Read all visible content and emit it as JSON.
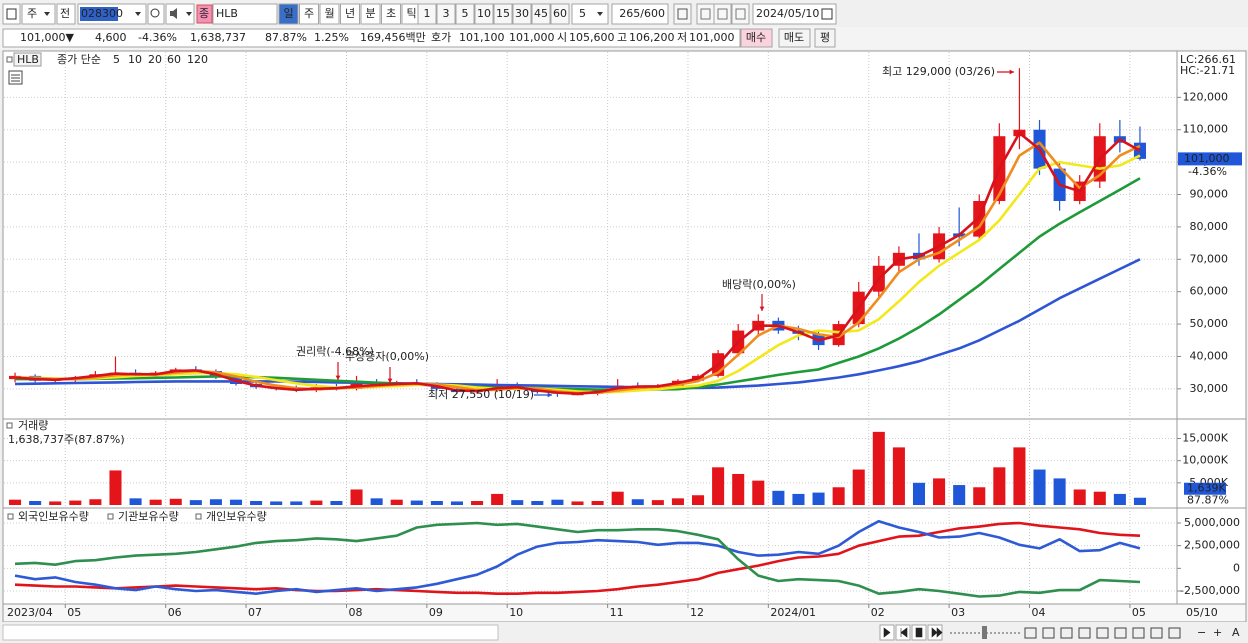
{
  "toolbar": {
    "market": "주",
    "prev": "전",
    "code": "028300",
    "tag": "종",
    "name": "HLB",
    "periods": [
      "일",
      "주",
      "월",
      "년",
      "분",
      "초",
      "틱"
    ],
    "intervals": [
      "1",
      "3",
      "5",
      "10",
      "15",
      "30",
      "45",
      "60"
    ],
    "interval_value": "5",
    "count": "265/600",
    "date": "2024/05/10"
  },
  "quote": {
    "price": "101,000▼",
    "change": "4,600",
    "change_pct": "-4.36%",
    "volume": "1,638,737",
    "volume_ratio": "87.87%",
    "turnover": "1.25%",
    "amount": "169,456백만",
    "ask_label": "호가",
    "ask": "101,100",
    "bid": "101,000",
    "open_label": "시",
    "open": "105,600",
    "high_label": "고",
    "high": "106,200",
    "low_label": "저",
    "low": "101,000",
    "buy": "매수",
    "sell": "매도",
    "avg": "평"
  },
  "bottom_toolbar": {
    "zoom_out": "−",
    "zoom_in": "+",
    "font": "A"
  },
  "chart_data": [
    {
      "type": "candlestick",
      "title": "HLB",
      "legend_label": "종가 단순",
      "categories": [
        "2023/04",
        null,
        null,
        "05",
        null,
        null,
        null,
        null,
        "06",
        null,
        null,
        null,
        "07",
        null,
        null,
        null,
        null,
        "08",
        null,
        null,
        null,
        "09",
        null,
        null,
        null,
        "10",
        null,
        null,
        null,
        null,
        "11",
        null,
        null,
        null,
        "12",
        null,
        null,
        null,
        "2024/01",
        null,
        null,
        null,
        null,
        "02",
        null,
        null,
        null,
        "03",
        null,
        null,
        null,
        "04",
        null,
        null,
        null,
        null,
        "05"
      ],
      "last_x_label": "05/10",
      "open": [
        33000,
        34000,
        32500,
        33000,
        33500,
        34500,
        35000,
        34000,
        35000,
        36000,
        35500,
        33500,
        31500,
        30500,
        30000,
        29500,
        30500,
        30000,
        31500,
        31000,
        32000,
        31500,
        30000,
        29000,
        29500,
        31000,
        30000,
        29000,
        28500,
        28500,
        29500,
        31000,
        30500,
        31000,
        32500,
        34000,
        41000,
        48000,
        51000,
        48000,
        47000,
        43500,
        50000,
        60000,
        68000,
        72000,
        70000,
        78000,
        77000,
        88000,
        108000,
        110000,
        98000,
        88000,
        94000,
        108000,
        106000
      ],
      "high": [
        35000,
        34500,
        33500,
        34000,
        35500,
        40000,
        36000,
        35500,
        36500,
        37000,
        36000,
        34000,
        32000,
        31000,
        31000,
        31500,
        31500,
        34000,
        33000,
        32500,
        33000,
        32000,
        30500,
        30500,
        33000,
        32000,
        30500,
        29500,
        29500,
        30000,
        33000,
        32000,
        31500,
        33000,
        34500,
        42000,
        50000,
        53000,
        52000,
        49500,
        48000,
        51000,
        63000,
        71000,
        74000,
        78000,
        80000,
        86000,
        90000,
        112000,
        129000,
        113000,
        100000,
        96000,
        112000,
        113000,
        111000
      ],
      "low": [
        32000,
        32000,
        31500,
        32000,
        33000,
        34000,
        33500,
        33500,
        34500,
        35000,
        33000,
        31000,
        30000,
        29500,
        29000,
        29000,
        29500,
        29500,
        30500,
        30500,
        31000,
        29500,
        28500,
        28500,
        29000,
        29500,
        28500,
        27550,
        28000,
        28000,
        29000,
        30000,
        30000,
        30500,
        32000,
        33500,
        40000,
        46000,
        47000,
        45000,
        42000,
        43000,
        49000,
        58000,
        66000,
        68000,
        69000,
        74000,
        76000,
        87000,
        104000,
        96000,
        85000,
        87000,
        92000,
        103000,
        100500
      ],
      "close": [
        34000,
        32500,
        33000,
        33500,
        34500,
        35000,
        34000,
        35000,
        36000,
        35500,
        33500,
        31500,
        30500,
        30000,
        29500,
        30500,
        30000,
        31500,
        31000,
        32000,
        31500,
        30000,
        29000,
        29500,
        31000,
        30000,
        29000,
        28500,
        28500,
        29500,
        31000,
        30500,
        31000,
        32500,
        34000,
        41000,
        48000,
        51000,
        48000,
        47000,
        43500,
        50000,
        60000,
        68000,
        72000,
        70000,
        78000,
        77000,
        88000,
        108000,
        110000,
        98000,
        88000,
        94000,
        108000,
        106000,
        101000
      ],
      "up_color": "#e3151a",
      "down_color": "#1f57d8",
      "series": [
        {
          "name": "5",
          "color": "#d8121b",
          "values": [
            33500,
            33000,
            32800,
            33300,
            34000,
            34700,
            34500,
            34500,
            35500,
            35700,
            34500,
            32500,
            31000,
            30200,
            29700,
            30000,
            30200,
            30800,
            31200,
            31500,
            31700,
            30800,
            29500,
            29300,
            30200,
            30500,
            29500,
            28800,
            28500,
            29000,
            30200,
            30700,
            30800,
            31800,
            33200,
            37500,
            44500,
            49500,
            49500,
            47500,
            45000,
            46500,
            55000,
            64000,
            70000,
            71000,
            74000,
            77500,
            83000,
            98000,
            109000,
            104000,
            93000,
            91000,
            101000,
            107000,
            103500
          ]
        },
        {
          "name": "10",
          "color": "#f08c1e",
          "values": [
            33500,
            33300,
            33000,
            33000,
            33500,
            34200,
            34600,
            34500,
            35000,
            35500,
            35100,
            33800,
            32200,
            31000,
            30200,
            29900,
            30100,
            30400,
            30900,
            31300,
            31600,
            31300,
            30500,
            29600,
            29700,
            30300,
            30000,
            29200,
            28700,
            28800,
            29500,
            30300,
            30700,
            31300,
            32400,
            35000,
            40500,
            46500,
            49500,
            48500,
            46800,
            46000,
            50500,
            58000,
            66000,
            70000,
            72000,
            76000,
            80000,
            90000,
            102000,
            106000,
            98500,
            92000,
            96000,
            102000,
            105000
          ]
        },
        {
          "name": "20",
          "color": "#f3e81c",
          "values": [
            33500,
            33400,
            33200,
            33100,
            33200,
            33600,
            34000,
            34200,
            34500,
            34800,
            34900,
            34500,
            33700,
            32700,
            31700,
            30900,
            30400,
            30400,
            30600,
            30900,
            31200,
            31300,
            31000,
            30400,
            30000,
            30000,
            30100,
            29700,
            29200,
            28900,
            29100,
            29500,
            29900,
            30500,
            31000,
            32500,
            35500,
            39500,
            43500,
            46500,
            48000,
            47500,
            48000,
            51500,
            57000,
            63000,
            68000,
            72000,
            76000,
            82000,
            90000,
            98000,
            100000,
            99000,
            98000,
            99000,
            102000
          ]
        },
        {
          "name": "60",
          "color": "#1f9a38",
          "values": [
            33000,
            33000,
            33000,
            33000,
            33100,
            33200,
            33300,
            33400,
            33500,
            33700,
            33800,
            33800,
            33600,
            33400,
            33100,
            32800,
            32500,
            32200,
            31900,
            31600,
            31300,
            31100,
            30800,
            30600,
            30400,
            30300,
            30200,
            30000,
            29900,
            29800,
            29800,
            29800,
            29800,
            29900,
            30500,
            31300,
            32300,
            33300,
            34300,
            35200,
            36000,
            38000,
            40000,
            42500,
            45500,
            49000,
            53000,
            57500,
            62000,
            67000,
            72000,
            77000,
            81000,
            84500,
            88000,
            91500,
            95000
          ]
        },
        {
          "name": "120",
          "color": "#2f55d4",
          "values": [
            31500,
            31600,
            31700,
            31800,
            31900,
            32000,
            32100,
            32200,
            32300,
            32300,
            32300,
            32300,
            32300,
            32300,
            32200,
            32100,
            32000,
            31900,
            31800,
            31700,
            31600,
            31500,
            31400,
            31300,
            31200,
            31100,
            31000,
            30900,
            30800,
            30700,
            30600,
            30500,
            30400,
            30300,
            30300,
            30400,
            30700,
            31000,
            31500,
            32000,
            32700,
            33500,
            34500,
            35700,
            37000,
            38500,
            40500,
            42500,
            45000,
            48000,
            51000,
            54500,
            58000,
            61000,
            64000,
            67000,
            70000
          ]
        }
      ],
      "ylim": [
        21000,
        134000
      ],
      "yticks": [
        {
          "value": 30000,
          "label": "30,000"
        },
        {
          "value": 40000,
          "label": "40,000"
        },
        {
          "value": 50000,
          "label": "50,000"
        },
        {
          "value": 60000,
          "label": "60,000"
        },
        {
          "value": 70000,
          "label": "70,000"
        },
        {
          "value": 80000,
          "label": "80,000"
        },
        {
          "value": 90000,
          "label": "90,000"
        },
        {
          "value": 100000,
          "label": "100,000"
        },
        {
          "value": 110000,
          "label": "110,000"
        },
        {
          "value": 120000,
          "label": "120,000"
        }
      ],
      "grid": true,
      "last_price": {
        "value": 101000,
        "label": "101,000"
      },
      "last_change": "-4.36%",
      "lc": "LC:266.61",
      "hc": "HC:-21.71",
      "annotations": [
        "최고 129,000 (03/26)",
        "배당락(0,00%)",
        "권리락(-4.68%)",
        "무상증자(0,00%)",
        "최저 27,550 (10/19)"
      ]
    },
    {
      "type": "bar",
      "title": "거래량",
      "subtitle": "1,638,737주(87.87%)",
      "values": [
        1200,
        900,
        800,
        1000,
        1300,
        7800,
        1500,
        1200,
        1400,
        1100,
        1300,
        1200,
        900,
        800,
        800,
        1000,
        900,
        3500,
        1500,
        1200,
        1000,
        900,
        800,
        900,
        2500,
        1100,
        900,
        1200,
        800,
        900,
        3000,
        1300,
        1100,
        1500,
        2200,
        8500,
        7000,
        5500,
        3200,
        2500,
        2800,
        4000,
        8000,
        16500,
        13000,
        5000,
        6000,
        4500,
        4000,
        8500,
        13000,
        8000,
        6000,
        3500,
        3000,
        2500,
        1638.737
      ],
      "ylim": [
        0,
        18500
      ],
      "yticks": [
        {
          "value": 5000,
          "label": "5,000K"
        },
        {
          "value": 10000,
          "label": "10,000K"
        },
        {
          "value": 15000,
          "label": "15,000K"
        }
      ],
      "grid": true,
      "last_value": {
        "value": 1638.737,
        "label": "1,639K"
      },
      "last_ratio": "87.87%"
    },
    {
      "type": "line",
      "series": [
        {
          "name": "외국인보유수량",
          "color": "#e0141b",
          "values": [
            -1800000,
            -1900000,
            -2000000,
            -2000000,
            -2100000,
            -2200000,
            -2100000,
            -2000000,
            -1900000,
            -2000000,
            -2100000,
            -2200000,
            -2300000,
            -2200000,
            -2400000,
            -2500000,
            -2500000,
            -2400000,
            -2300000,
            -2400000,
            -2500000,
            -2600000,
            -2700000,
            -2700000,
            -2800000,
            -2800000,
            -2700000,
            -2700000,
            -2600000,
            -2500000,
            -2300000,
            -2000000,
            -1800000,
            -1500000,
            -1200000,
            -500000,
            -100000,
            300000,
            800000,
            1200000,
            1300000,
            1600000,
            2500000,
            3000000,
            3500000,
            3600000,
            4000000,
            4400000,
            4600000,
            4900000,
            5000000,
            4700000,
            4500000,
            4300000,
            3900000,
            3700000,
            3600000
          ]
        },
        {
          "name": "기관보유수량",
          "color": "#2f5ad6",
          "values": [
            -800000,
            -1200000,
            -1000000,
            -1500000,
            -1800000,
            -2200000,
            -2400000,
            -2000000,
            -2300000,
            -2500000,
            -2400000,
            -2600000,
            -2800000,
            -2500000,
            -2300000,
            -2600000,
            -2400000,
            -2200000,
            -2500000,
            -2300000,
            -2100000,
            -1700000,
            -1200000,
            -700000,
            200000,
            1500000,
            2400000,
            2800000,
            2900000,
            3100000,
            3000000,
            2900000,
            2600000,
            2800000,
            2800000,
            2500000,
            1800000,
            1400000,
            1500000,
            1800000,
            1600000,
            2500000,
            4000000,
            5200000,
            4500000,
            4000000,
            3400000,
            3500000,
            3900000,
            3400000,
            2600000,
            2200000,
            3200000,
            1900000,
            2000000,
            2800000,
            2200000
          ]
        },
        {
          "name": "개인보유수량",
          "color": "#2e8f4e",
          "values": [
            500000,
            600000,
            400000,
            800000,
            900000,
            1200000,
            1400000,
            1500000,
            1600000,
            1800000,
            2100000,
            2400000,
            2800000,
            3000000,
            3100000,
            3300000,
            3200000,
            3000000,
            3300000,
            3600000,
            4500000,
            4800000,
            4900000,
            5000000,
            4800000,
            4900000,
            4600000,
            4300000,
            4000000,
            4200000,
            4200000,
            4300000,
            4300000,
            4100000,
            3700000,
            3200000,
            1000000,
            -800000,
            -1400000,
            -1200000,
            -1300000,
            -1400000,
            -1900000,
            -2800000,
            -2600000,
            -2300000,
            -2500000,
            -2800000,
            -3100000,
            -3000000,
            -2600000,
            -2700000,
            -2400000,
            -2400000,
            -1300000,
            -1400000,
            -1500000
          ]
        }
      ],
      "ylim": [
        -3820000,
        6320000
      ],
      "yticks": [
        {
          "value": 5000000,
          "label": "5,000,000"
        },
        {
          "value": 2500000,
          "label": "2,500,000"
        },
        0,
        {
          "value": -2500000,
          "label": "-2,500,000"
        }
      ],
      "grid": true
    }
  ]
}
